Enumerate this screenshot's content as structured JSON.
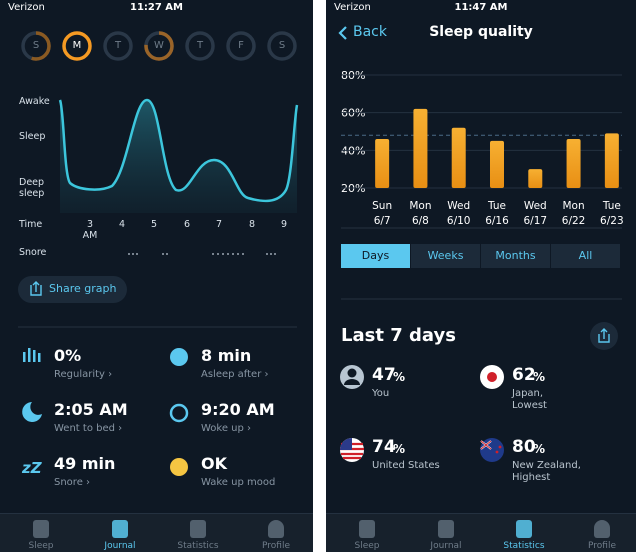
{
  "left_screen": {
    "status": {
      "carrier": "Verizon",
      "time": "11:27 AM"
    },
    "days": [
      "S",
      "M",
      "T",
      "W",
      "T",
      "F",
      "S"
    ],
    "graph_labels": {
      "awake": "Awake",
      "sleep": "Sleep",
      "deep": "Deep\nsleep",
      "time": "Time",
      "snore": "Snore"
    },
    "time_ticks": [
      "3\nAM",
      "4",
      "5",
      "6",
      "7",
      "8",
      "9"
    ],
    "share_button": "Share graph",
    "stats": [
      {
        "value": "0%",
        "label": "Regularity ›"
      },
      {
        "value": "8 min",
        "label": "Asleep after ›"
      },
      {
        "value": "2:05 AM",
        "label": "Went to bed ›"
      },
      {
        "value": "9:20 AM",
        "label": "Woke up ›"
      },
      {
        "value": "49 min",
        "label": "Snore ›"
      },
      {
        "value": "OK",
        "label": "Wake up mood"
      }
    ],
    "tabs": [
      "Sleep",
      "Journal",
      "Statistics",
      "Profile"
    ]
  },
  "right_screen": {
    "status": {
      "carrier": "Verizon",
      "time": "11:47 AM"
    },
    "back": "Back",
    "title": "Sleep quality",
    "segments": [
      "Days",
      "Weeks",
      "Months",
      "All"
    ],
    "section_title": "Last 7 days",
    "stats": [
      {
        "value": "47",
        "unit": "%",
        "label": "You"
      },
      {
        "value": "62",
        "unit": "%",
        "label": "Japan,\nLowest"
      },
      {
        "value": "74",
        "unit": "%",
        "label": "United States"
      },
      {
        "value": "80",
        "unit": "%",
        "label": "New Zealand,\nHighest"
      }
    ],
    "tabs": [
      "Sleep",
      "Journal",
      "Statistics",
      "Profile"
    ]
  },
  "chart_data": {
    "type": "bar",
    "categories": [
      "Sun\n6/7",
      "Mon\n6/8",
      "Wed\n6/10",
      "Tue\n6/16",
      "Wed\n6/17",
      "Mon\n6/22",
      "Tue\n6/23"
    ],
    "values": [
      46,
      62,
      52,
      45,
      30,
      46,
      49
    ],
    "color": "#f5a623",
    "ylim": [
      20,
      80
    ],
    "yticks": [
      {
        "value": 20,
        "label": "20%"
      },
      {
        "value": 40,
        "label": "40%"
      },
      {
        "value": 60,
        "label": "60%"
      },
      {
        "value": 80,
        "label": "80%"
      }
    ],
    "reference_line": 48,
    "grid": true
  }
}
